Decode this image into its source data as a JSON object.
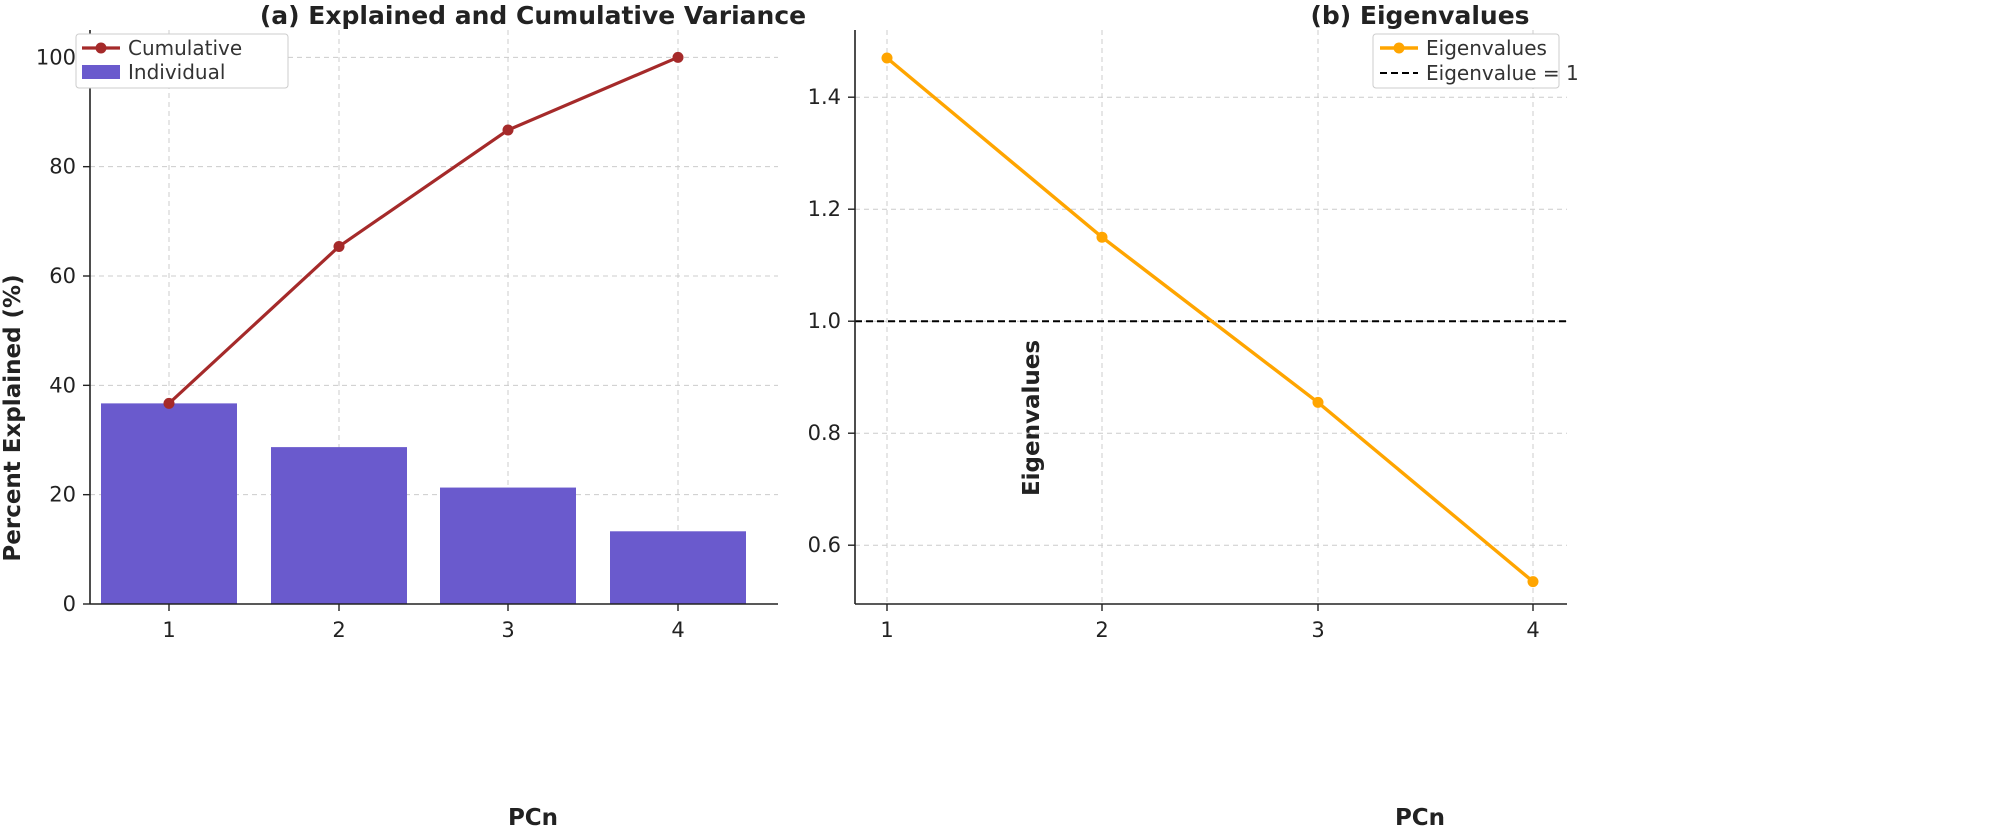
{
  "chart_data": [
    {
      "type": "bar",
      "title": "(a) Explained and Cumulative Variance",
      "xlabel": "PCn",
      "ylabel": "Percent Explained (%)",
      "categories": [
        "1",
        "2",
        "3",
        "4"
      ],
      "ylim": [
        0,
        105
      ],
      "yticks": [
        0,
        20,
        40,
        60,
        80,
        100
      ],
      "grid": true,
      "legend_position": "top-left",
      "series": [
        {
          "name": "Individual",
          "kind": "bar",
          "color": "#6A5ACD",
          "values": [
            36.7,
            28.7,
            21.3,
            13.3
          ]
        },
        {
          "name": "Cumulative",
          "kind": "line",
          "color": "#A52A2A",
          "values": [
            36.7,
            65.4,
            86.7,
            100.0
          ]
        }
      ]
    },
    {
      "type": "line",
      "title": "(b) Eigenvalues",
      "xlabel": "PCn",
      "ylabel": "Eigenvalues",
      "x": [
        1,
        2,
        3,
        4
      ],
      "ylim": [
        0.495,
        1.52
      ],
      "yticks": [
        0.6,
        0.8,
        1.0,
        1.2,
        1.4
      ],
      "ytick_labels": [
        "0.6",
        "0.8",
        "1.0",
        "1.2",
        "1.4"
      ],
      "grid": true,
      "legend_position": "top-right",
      "series": [
        {
          "name": "Eigenvalues",
          "kind": "line",
          "color": "#FFA500",
          "values": [
            1.47,
            1.15,
            0.855,
            0.535
          ]
        }
      ],
      "reference_lines": [
        {
          "name": "Eigenvalue = 1",
          "y": 1.0,
          "color": "#000000",
          "style": "dashed"
        }
      ]
    }
  ]
}
